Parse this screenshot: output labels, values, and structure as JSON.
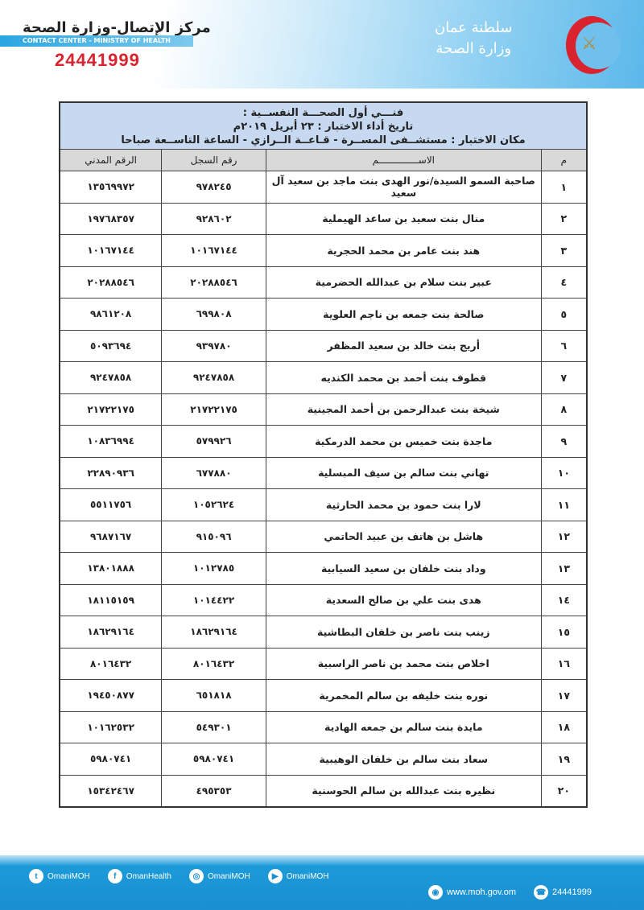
{
  "header": {
    "center_ar": "مركز الإتصال-وزارة الصحة",
    "center_en": "CONTACT CENTER - MINISTRY OF HEALTH",
    "phone": "24441999",
    "logo_line1": "سلطنة عمان",
    "logo_line2": "وزارة الصحة"
  },
  "doc": {
    "title": "فنـــي أول الصحـــة النفســية :",
    "date_line": "تاريخ أداء الاختبار : ٢٣ أبريل ٢٠١٩م",
    "place_line": "مكان الاختبار : مستشــفى المســرة - قـاعــة الــرازي - الساعة التاســعة صباحا"
  },
  "columns": {
    "index": "م",
    "name": "الاســــــــــــــم",
    "reg": "رقم السجل",
    "civil": "الرقم المدني"
  },
  "rows": [
    {
      "n": "١",
      "name": "صاحبة السمو السيدة/نور الهدى بنت ماجد بن سعيد آل سعيد",
      "reg": "٩٧٨٢٤٥",
      "civil": "١٣٥٦٩٩٧٢"
    },
    {
      "n": "٢",
      "name": "منال بنت سعيد بن ساعد الهيملية",
      "reg": "٩٢٨٦٠٢",
      "civil": "١٩٧٦٨٣٥٧"
    },
    {
      "n": "٣",
      "name": "هند بنت عامر بن محمد الحجرية",
      "reg": "١٠١٦٧١٤٤",
      "civil": "١٠١٦٧١٤٤"
    },
    {
      "n": "٤",
      "name": "عبير بنت سلام بن عبدالله الحضرمية",
      "reg": "٢٠٢٨٨٥٤٦",
      "civil": "٢٠٢٨٨٥٤٦"
    },
    {
      "n": "٥",
      "name": "صالحة بنت جمعه بن ناجم العلوية",
      "reg": "٦٩٩٨٠٨",
      "civil": "٩٨٦١٢٠٨"
    },
    {
      "n": "٦",
      "name": "أريج بنت خالد بن سعيد المظفر",
      "reg": "٩٣٩٧٨٠",
      "civil": "٥٠٩٣٦٩٤"
    },
    {
      "n": "٧",
      "name": "قطوف بنت أحمد بن محمد الكنديه",
      "reg": "٩٢٤٧٨٥٨",
      "civil": "٩٢٤٧٨٥٨"
    },
    {
      "n": "٨",
      "name": "شيخة بنت عبدالرحمن بن أحمد المجينية",
      "reg": "٢١٧٢٢١٧٥",
      "civil": "٢١٧٢٢١٧٥"
    },
    {
      "n": "٩",
      "name": "ماجدة بنت خميس بن محمد الدرمكية",
      "reg": "٥٧٩٩٢٦",
      "civil": "١٠٨٣٦٩٩٤"
    },
    {
      "n": "١٠",
      "name": "تهاني بنت سالم بن سيف المبسلية",
      "reg": "٦٧٧٨٨٠",
      "civil": "٢٢٨٩٠٩٣٦"
    },
    {
      "n": "١١",
      "name": "لارا بنت حمود بن محمد الحارثية",
      "reg": "١٠٥٢٦٢٤",
      "civil": "٥٥١١٧٥٦"
    },
    {
      "n": "١٢",
      "name": "هاشل بن هاتف بن عبيد الحاتمي",
      "reg": "٩١٥٠٩٦",
      "civil": "٩٦٨٧١٦٧"
    },
    {
      "n": "١٣",
      "name": "وداد بنت خلفان بن سعيد السيابية",
      "reg": "١٠١٢٧٨٥",
      "civil": "١٣٨٠١٨٨٨"
    },
    {
      "n": "١٤",
      "name": "هدى بنت علي بن صالح السعدية",
      "reg": "١٠١٤٤٢٢",
      "civil": "١٨١١٥١٥٩"
    },
    {
      "n": "١٥",
      "name": "زينب بنت ناصر بن خلفان البطاشية",
      "reg": "١٨٦٢٩١٦٤",
      "civil": "١٨٦٢٩١٦٤"
    },
    {
      "n": "١٦",
      "name": "اخلاص بنت محمد بن ناصر الراسبية",
      "reg": "٨٠١٦٤٣٢",
      "civil": "٨٠١٦٤٣٢"
    },
    {
      "n": "١٧",
      "name": "نوره بنت خليفه بن سالم المخمرية",
      "reg": "٦٥١٨١٨",
      "civil": "١٩٤٥٠٨٧٧"
    },
    {
      "n": "١٨",
      "name": "مايدة بنت سالم بن جمعه الهادية",
      "reg": "٥٤٩٣٠١",
      "civil": "١٠١٦٢٥٣٢"
    },
    {
      "n": "١٩",
      "name": "سعاد بنت سالم بن خلفان الوهيبية",
      "reg": "٥٩٨٠٧٤١",
      "civil": "٥٩٨٠٧٤١"
    },
    {
      "n": "٢٠",
      "name": "نظيره بنت عبدالله بن سالم الحوسنية",
      "reg": "٤٩٥٣٥٣",
      "civil": "١٥٣٤٢٤٦٧"
    }
  ],
  "footer": {
    "social": [
      {
        "icon": "twitter-icon",
        "glyph": "t",
        "label": "OmaniMOH"
      },
      {
        "icon": "facebook-icon",
        "glyph": "f",
        "label": "OmanHealth"
      },
      {
        "icon": "instagram-icon",
        "glyph": "◎",
        "label": "OmaniMOH"
      },
      {
        "icon": "youtube-icon",
        "glyph": "▶",
        "label": "OmaniMOH"
      }
    ],
    "website": "www.moh.gov.om",
    "phone": "24441999"
  }
}
